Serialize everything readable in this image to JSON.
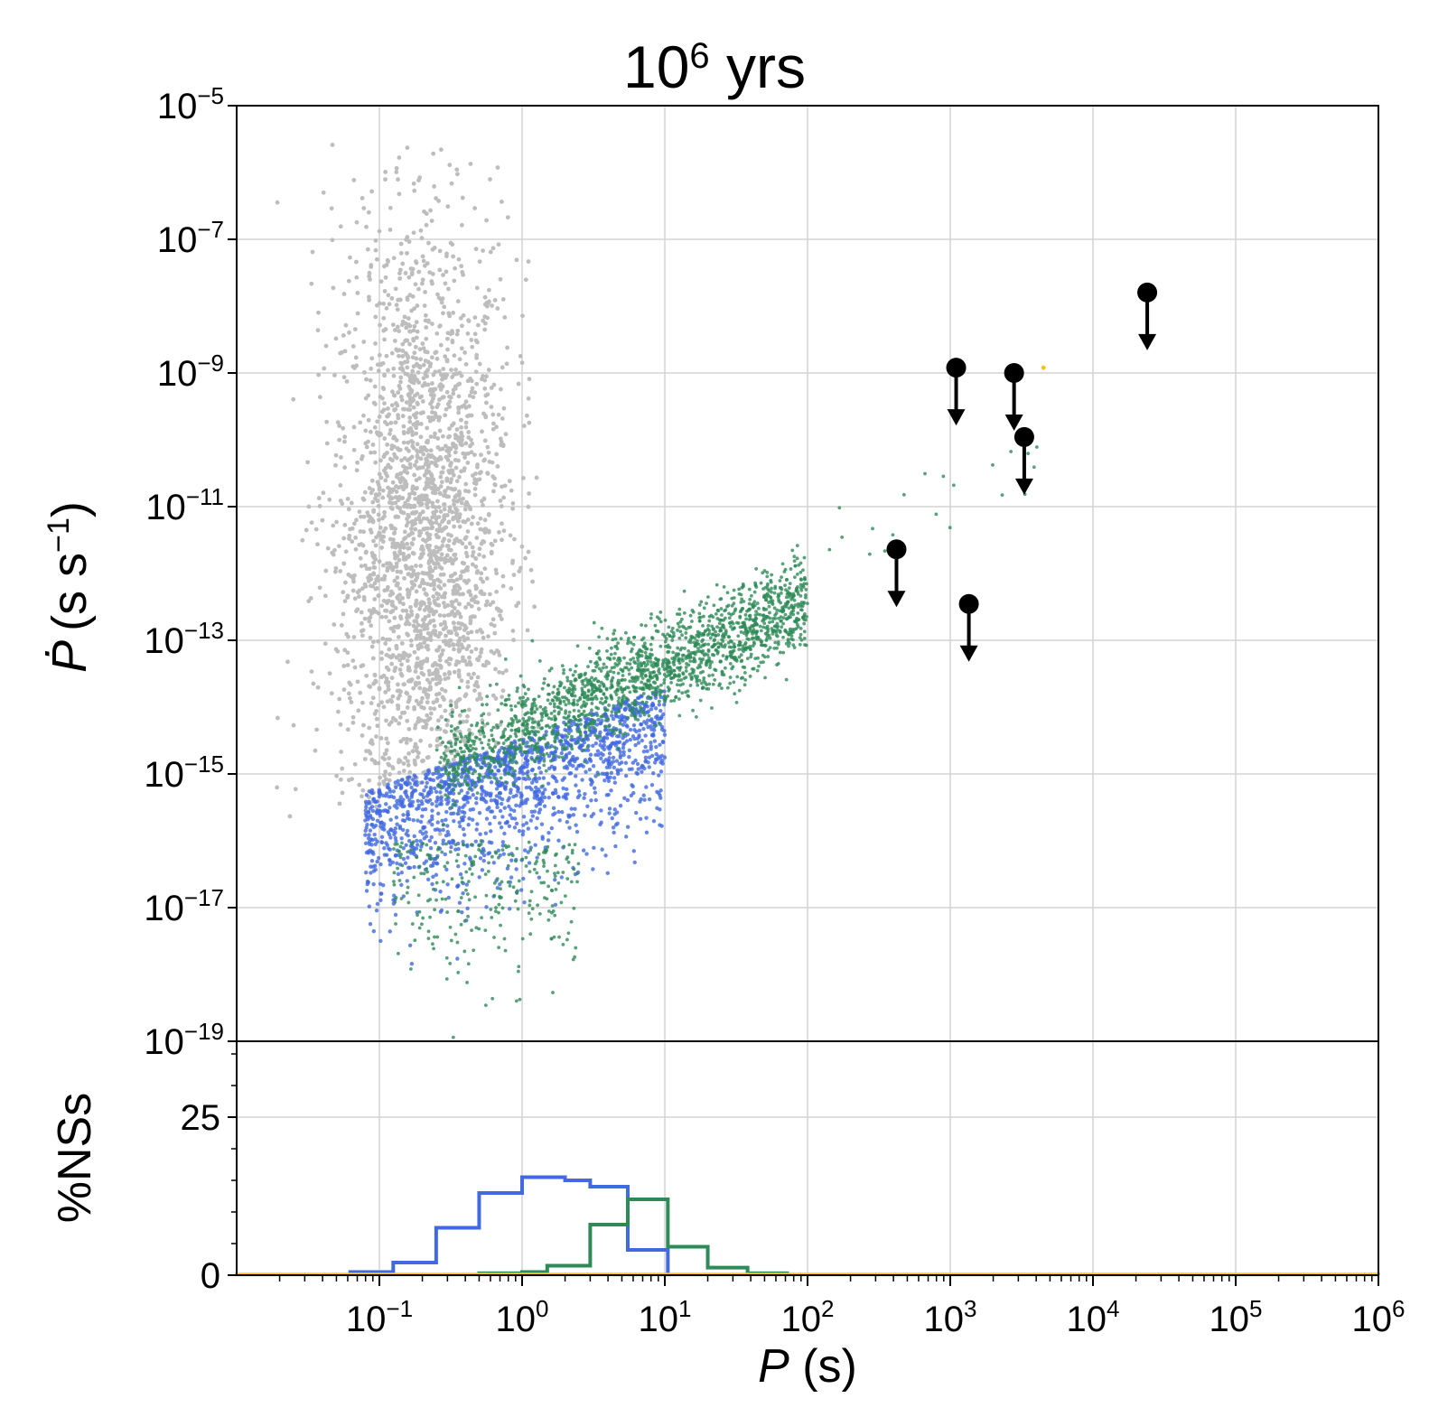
{
  "title": {
    "base": "10",
    "exp": "6",
    "rest": " yrs"
  },
  "y_axis_label": {
    "pdot": "Ṗ",
    "units": "(s s",
    "exp": "−1",
    "close": ")"
  },
  "x_axis_label": {
    "symbol": "P",
    "units": " (s)"
  },
  "hist_axis_label": "%NSs",
  "colors": {
    "gray_population": "#bdbdbd",
    "blue_population": "#4169e1",
    "green_population": "#2e8b57",
    "orange_population": "#ffc125",
    "observed_sources": "#000000",
    "grid": "#d3d3d3"
  },
  "chart_data": [
    {
      "type": "scatter",
      "panel": "top",
      "x_scale": "log",
      "y_scale": "log",
      "xlim": [
        0.01,
        1000000
      ],
      "ylim": [
        1e-19,
        1e-05
      ],
      "grid": true,
      "x_ticks": [
        {
          "base": "10",
          "exp": "−1"
        },
        {
          "base": "10",
          "exp": "0"
        },
        {
          "base": "10",
          "exp": "1"
        },
        {
          "base": "10",
          "exp": "2"
        },
        {
          "base": "10",
          "exp": "3"
        },
        {
          "base": "10",
          "exp": "4"
        },
        {
          "base": "10",
          "exp": "5"
        },
        {
          "base": "10",
          "exp": "6"
        }
      ],
      "x_tick_values": [
        0.1,
        1,
        10,
        100,
        1000,
        10000,
        100000,
        1000000
      ],
      "y_ticks": [
        {
          "base": "10",
          "exp": "−5"
        },
        {
          "base": "10",
          "exp": "−7"
        },
        {
          "base": "10",
          "exp": "−9"
        },
        {
          "base": "10",
          "exp": "−11"
        },
        {
          "base": "10",
          "exp": "−13"
        },
        {
          "base": "10",
          "exp": "−15"
        },
        {
          "base": "10",
          "exp": "−17"
        },
        {
          "base": "10",
          "exp": "−19"
        }
      ],
      "y_tick_values": [
        1e-05,
        1e-07,
        1e-09,
        1e-11,
        1e-13,
        1e-15,
        1e-17,
        1e-19
      ],
      "populations": [
        {
          "color_key": "gray_population",
          "distribution": "ellipse",
          "center_log_p": -0.7,
          "center_log_pdot": -11.5,
          "spread_log_p": 0.3,
          "spread_log_pdot": 2.4,
          "p_range": [
            0.015,
            1.5
          ],
          "pdot_range": [
            1e-16,
            3e-06
          ]
        },
        {
          "color_key": "blue_population",
          "distribution": "band",
          "p_range": [
            0.06,
            10
          ],
          "pdot_range": [
            1e-19,
            1e-14
          ]
        },
        {
          "color_key": "green_population",
          "distribution": "band",
          "p_range": [
            0.3,
            100
          ],
          "pdot_range": [
            1e-19,
            1e-11
          ]
        },
        {
          "color_key": "orange_population",
          "distribution": "points",
          "p_range": [
            4500,
            4500
          ],
          "pdot_range": [
            1.2e-09,
            1.2e-09
          ]
        }
      ],
      "upper_limits": [
        {
          "p": 1100,
          "pdot": 1.2e-09
        },
        {
          "p": 2800,
          "pdot": 1e-09
        },
        {
          "p": 3300,
          "pdot": 1.1e-10
        },
        {
          "p": 420,
          "pdot": 2.3e-12
        },
        {
          "p": 1350,
          "pdot": 3.5e-13
        },
        {
          "p": 24000,
          "pdot": 1.6e-08
        }
      ]
    },
    {
      "type": "histogram",
      "panel": "bottom",
      "x_scale": "log",
      "xlim": [
        0.01,
        1000000
      ],
      "ylim": [
        0,
        37
      ],
      "y_ticks": [
        "0",
        "25"
      ],
      "y_tick_values": [
        0,
        25
      ],
      "grid": true,
      "series": [
        {
          "color_key": "blue_population",
          "bin_edges": [
            0.0625,
            0.125,
            0.25,
            0.5,
            1,
            2,
            3,
            5.5,
            10.5
          ],
          "values": [
            0.5,
            2,
            7.5,
            13,
            15.5,
            15,
            14,
            4
          ]
        },
        {
          "color_key": "green_population",
          "bin_edges": [
            0.5,
            1,
            1.5,
            3,
            5.5,
            10.5,
            20,
            38,
            72
          ],
          "values": [
            0.3,
            0.5,
            1.5,
            8,
            12,
            4.5,
            1.2,
            0.3
          ]
        },
        {
          "color_key": "orange_population",
          "bin_edges": [
            0.01,
            1000000
          ],
          "values": [
            0.1
          ]
        }
      ]
    }
  ]
}
